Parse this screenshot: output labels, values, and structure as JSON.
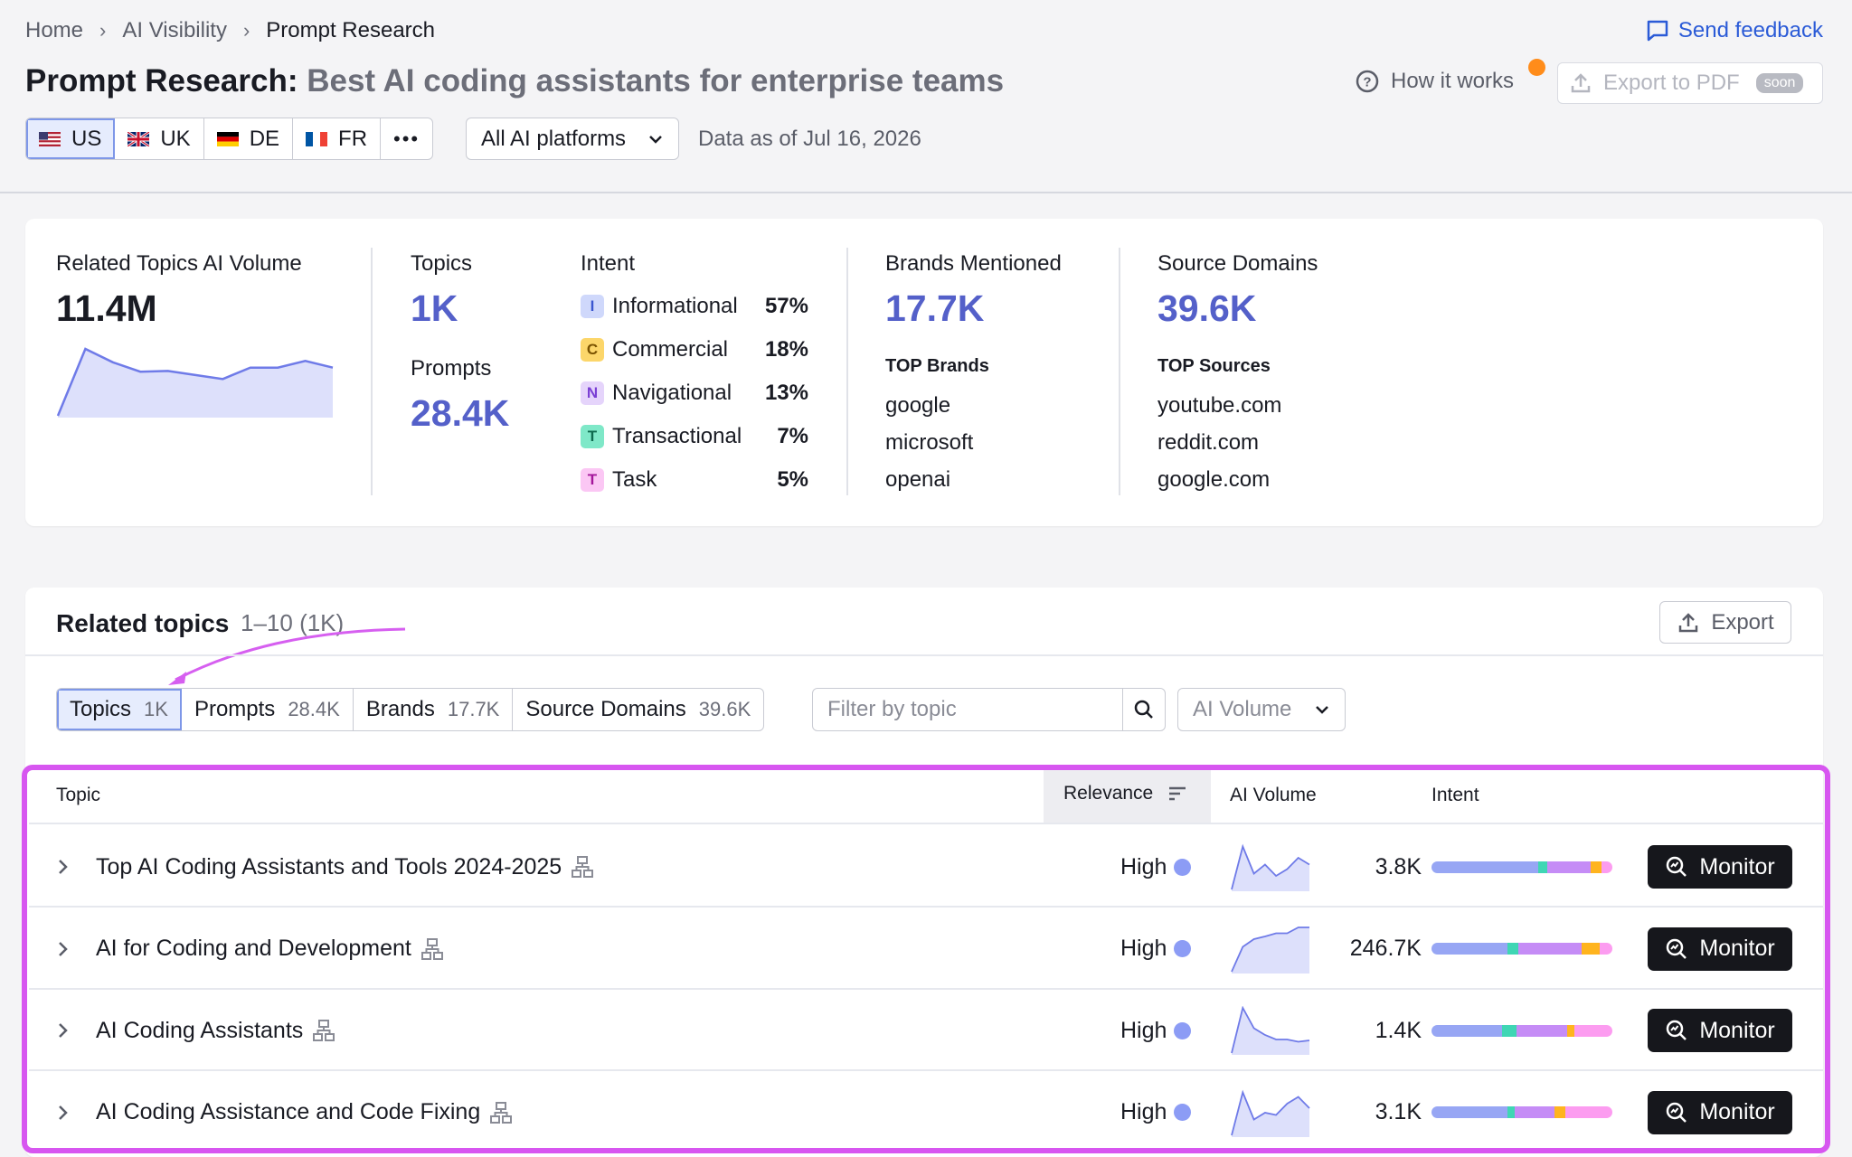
{
  "breadcrumb": [
    "Home",
    "AI Visibility",
    "Prompt Research"
  ],
  "feedback_label": "Send feedback",
  "title": {
    "main": "Prompt Research:",
    "query": "Best AI coding assistants for enterprise teams"
  },
  "how_it_works": "How it works",
  "export_pdf": {
    "label": "Export to PDF",
    "badge": "soon"
  },
  "countries": [
    {
      "code": "US",
      "active": true
    },
    {
      "code": "UK",
      "active": false
    },
    {
      "code": "DE",
      "active": false
    },
    {
      "code": "FR",
      "active": false
    }
  ],
  "more_label": "•••",
  "platform_select": "All AI platforms",
  "data_as_of": "Data as of Jul 16, 2026",
  "summary": {
    "volume": {
      "label": "Related Topics AI Volume",
      "value": "11.4M",
      "trend": [
        0.0,
        1.0,
        0.8,
        0.66,
        0.67,
        0.61,
        0.55,
        0.72,
        0.72,
        0.82,
        0.72
      ]
    },
    "topics": {
      "label": "Topics",
      "value": "1K"
    },
    "prompts": {
      "label": "Prompts",
      "value": "28.4K"
    },
    "intent": {
      "label": "Intent",
      "items": [
        {
          "letter": "I",
          "name": "Informational",
          "pct": "57%",
          "bg": "#cfd8fb",
          "fg": "#3a56d0"
        },
        {
          "letter": "C",
          "name": "Commercial",
          "pct": "18%",
          "bg": "#fcd66a",
          "fg": "#7a5200"
        },
        {
          "letter": "N",
          "name": "Navigational",
          "pct": "13%",
          "bg": "#e5d4fb",
          "fg": "#7a3fd4"
        },
        {
          "letter": "T",
          "name": "Transactional",
          "pct": "7%",
          "bg": "#7fe8c8",
          "fg": "#0e6a4e"
        },
        {
          "letter": "T",
          "name": "Task",
          "pct": "5%",
          "bg": "#fbc7f4",
          "fg": "#a4169a"
        }
      ]
    },
    "brands": {
      "label": "Brands Mentioned",
      "value": "17.7K",
      "top_label": "TOP Brands",
      "top": [
        "google",
        "microsoft",
        "openai"
      ]
    },
    "sources": {
      "label": "Source Domains",
      "value": "39.6K",
      "top_label": "TOP Sources",
      "top": [
        "youtube.com",
        "reddit.com",
        "google.com"
      ]
    }
  },
  "related": {
    "title": "Related topics",
    "range": "1–10 (1K)",
    "export_label": "Export",
    "tabs": [
      {
        "label": "Topics",
        "count": "1K",
        "active": true
      },
      {
        "label": "Prompts",
        "count": "28.4K",
        "active": false
      },
      {
        "label": "Brands",
        "count": "17.7K",
        "active": false
      },
      {
        "label": "Source Domains",
        "count": "39.6K",
        "active": false
      }
    ],
    "filter_placeholder": "Filter by topic",
    "sort_select": "AI Volume",
    "columns": {
      "topic": "Topic",
      "relevance": "Relevance",
      "volume": "AI Volume",
      "intent": "Intent"
    },
    "rows": [
      {
        "topic": "Top AI Coding Assistants and Tools 2024-2025",
        "relevance": "High",
        "volume": "3.8K",
        "monitor": "Monitor",
        "trend": [
          0.0,
          0.95,
          0.35,
          0.55,
          0.3,
          0.45,
          0.7,
          0.55
        ],
        "intent_mix": [
          0.59,
          0.05,
          0.24,
          0.06,
          0.06
        ]
      },
      {
        "topic": "AI for Coding and Development",
        "relevance": "High",
        "volume": "246.7K",
        "monitor": "Monitor",
        "trend": [
          0.0,
          0.55,
          0.72,
          0.78,
          0.85,
          0.85,
          0.98,
          0.98
        ],
        "intent_mix": [
          0.42,
          0.06,
          0.35,
          0.1,
          0.07
        ]
      },
      {
        "topic": "AI Coding Assistants",
        "relevance": "High",
        "volume": "1.4K",
        "monitor": "Monitor",
        "trend": [
          0.0,
          1.0,
          0.55,
          0.4,
          0.3,
          0.3,
          0.25,
          0.28
        ],
        "intent_mix": [
          0.39,
          0.08,
          0.28,
          0.04,
          0.21
        ]
      },
      {
        "topic": "AI Coding Assistance and Code Fixing",
        "relevance": "High",
        "volume": "3.1K",
        "monitor": "Monitor",
        "trend": [
          0.0,
          0.95,
          0.35,
          0.5,
          0.45,
          0.7,
          0.85,
          0.6
        ],
        "intent_mix": [
          0.42,
          0.04,
          0.22,
          0.06,
          0.26
        ]
      }
    ],
    "intent_colors": [
      "#97a6f4",
      "#3fd6b4",
      "#c58cf6",
      "#ffb41e",
      "#fc9cf0"
    ]
  }
}
